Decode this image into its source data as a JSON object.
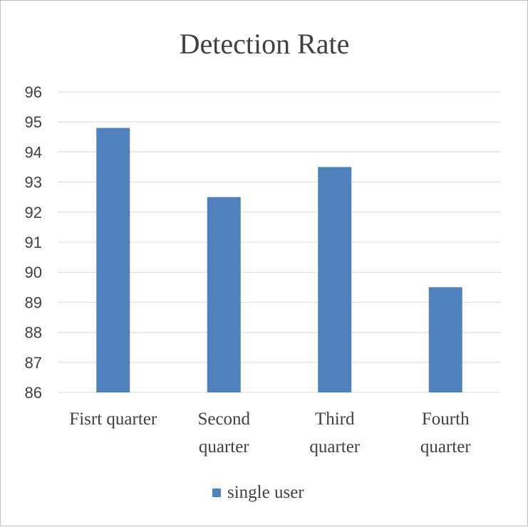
{
  "chart_data": {
    "type": "bar",
    "title": "Detection Rate",
    "categories": [
      [
        "Fisrt quarter"
      ],
      [
        "Second",
        "quarter"
      ],
      [
        "Third",
        "quarter"
      ],
      [
        "Fourth",
        "quarter"
      ]
    ],
    "series": [
      {
        "name": "single user",
        "values": [
          94.8,
          92.5,
          93.5,
          89.5
        ],
        "color": "#4f81bd"
      }
    ],
    "ylim": [
      86,
      96
    ],
    "yticks": [
      86,
      87,
      88,
      89,
      90,
      91,
      92,
      93,
      94,
      95,
      96
    ],
    "grid": true,
    "legend": "bottom"
  }
}
